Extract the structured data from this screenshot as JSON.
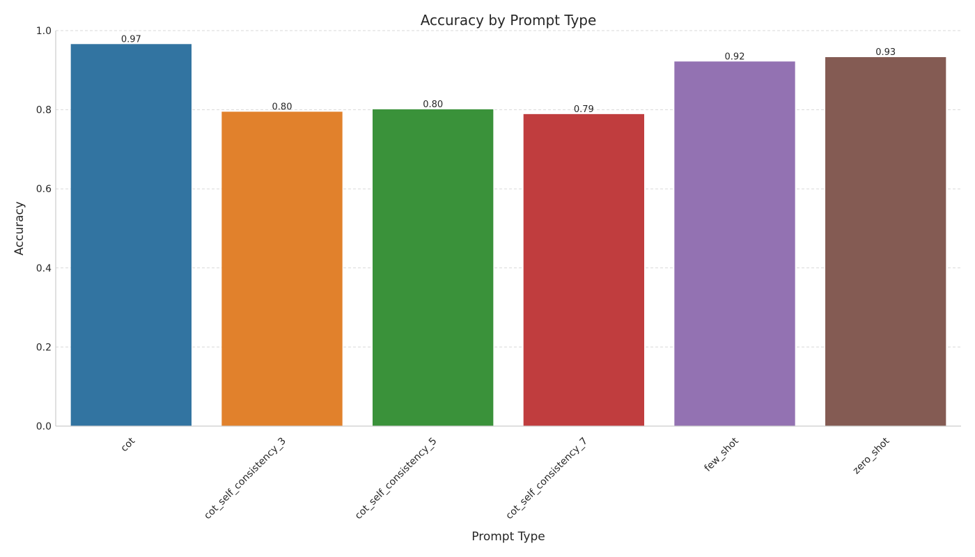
{
  "chart_data": {
    "type": "bar",
    "title": "Accuracy by Prompt Type",
    "xlabel": "Prompt Type",
    "ylabel": "Accuracy",
    "categories": [
      "cot",
      "cot_self_consistency_3",
      "cot_self_consistency_5",
      "cot_self_consistency_7",
      "few_shot",
      "zero_shot"
    ],
    "values": [
      0.966,
      0.795,
      0.801,
      0.789,
      0.922,
      0.933
    ],
    "data_labels": [
      "0.97",
      "0.80",
      "0.80",
      "0.79",
      "0.92",
      "0.93"
    ],
    "colors": [
      "#3274a1",
      "#e1812c",
      "#3a923a",
      "#c03d3e",
      "#9372b2",
      "#845b53"
    ],
    "ylim": [
      0,
      1.0
    ],
    "yticks": [
      0.0,
      0.2,
      0.4,
      0.6,
      0.8,
      1.0
    ],
    "ytick_labels": [
      "0.0",
      "0.2",
      "0.4",
      "0.6",
      "0.8",
      "1.0"
    ],
    "grid": "y-dashed",
    "legend": "none"
  }
}
